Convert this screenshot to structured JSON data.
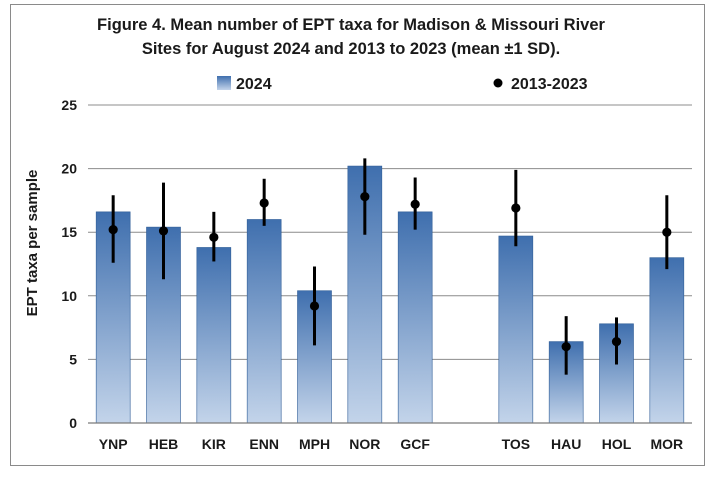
{
  "chart_data": {
    "type": "bar",
    "title_lines": [
      "Figure 4. Mean number of EPT taxa for Madison & Missouri River",
      "Sites for August 2024 and 2013 to 2023 (mean ±1 SD)."
    ],
    "ylabel": "EPT taxa per sample",
    "xlabel": "",
    "ylim": [
      0,
      25
    ],
    "yticks": [
      0,
      5,
      10,
      15,
      20,
      25
    ],
    "grid": true,
    "legend_position": "top",
    "categories": [
      "YNP",
      "HEB",
      "KIR",
      "ENN",
      "MPH",
      "NOR",
      "GCF",
      "",
      "TOS",
      "HAU",
      "HOL",
      "MOR"
    ],
    "series": [
      {
        "name": "2024",
        "kind": "bar",
        "color_top": "#3f6fae",
        "color_bottom": "#c3d4ea",
        "values": [
          16.6,
          15.4,
          13.8,
          16.0,
          10.4,
          20.2,
          16.6,
          null,
          14.7,
          6.4,
          7.8,
          13.0
        ]
      },
      {
        "name": "2013-2023",
        "kind": "point_errorbar",
        "color": "#000000",
        "values": [
          15.2,
          15.1,
          14.6,
          17.3,
          9.2,
          17.8,
          17.2,
          null,
          16.9,
          6.0,
          6.4,
          15.0
        ],
        "error_low": [
          12.6,
          11.3,
          12.7,
          15.5,
          6.1,
          14.8,
          15.2,
          null,
          13.9,
          3.8,
          4.6,
          12.1
        ],
        "error_high": [
          17.9,
          18.9,
          16.6,
          19.2,
          12.3,
          20.8,
          19.3,
          null,
          19.9,
          8.4,
          8.3,
          17.9
        ]
      }
    ]
  }
}
